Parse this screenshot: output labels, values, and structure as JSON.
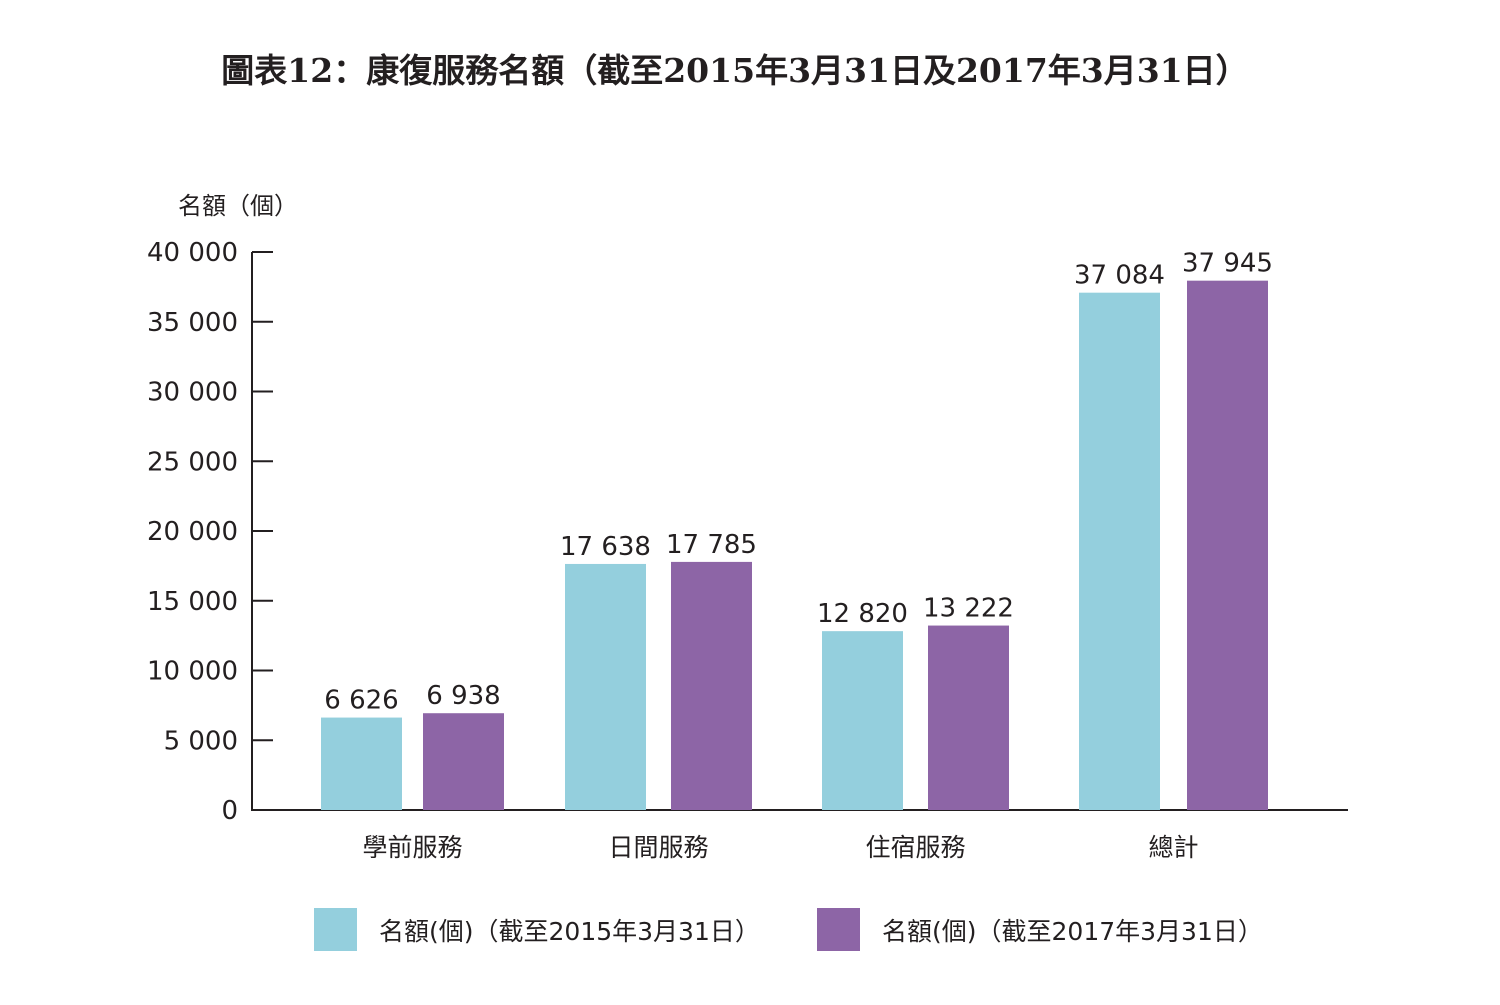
{
  "chart_data": {
    "type": "bar",
    "title": "圖表12：康復服務名額（截至2015年3月31日及2017年3月31日）",
    "ylabel": "名額（個）",
    "xlabel": "",
    "ylim": [
      0,
      40000
    ],
    "yticks": [
      0,
      5000,
      10000,
      15000,
      20000,
      25000,
      30000,
      35000,
      40000
    ],
    "ytick_labels": [
      "0",
      "5 000",
      "10 000",
      "15 000",
      "20 000",
      "25 000",
      "30 000",
      "35 000",
      "40 000"
    ],
    "categories": [
      "學前服務",
      "日間服務",
      "住宿服務",
      "總計"
    ],
    "series": [
      {
        "name": "名額(個)（截至2015年3月31日）",
        "color": "#94cfdd",
        "values": [
          6626,
          17638,
          12820,
          37084
        ],
        "labels": [
          "6 626",
          "17 638",
          "12 820",
          "37 084"
        ]
      },
      {
        "name": "名額(個)（截至2017年3月31日）",
        "color": "#8d65a6",
        "values": [
          6938,
          17785,
          13222,
          37945
        ],
        "labels": [
          "6 938",
          "17 785",
          "13 222",
          "37 945"
        ]
      }
    ],
    "grid": false,
    "legend_position": "bottom"
  }
}
